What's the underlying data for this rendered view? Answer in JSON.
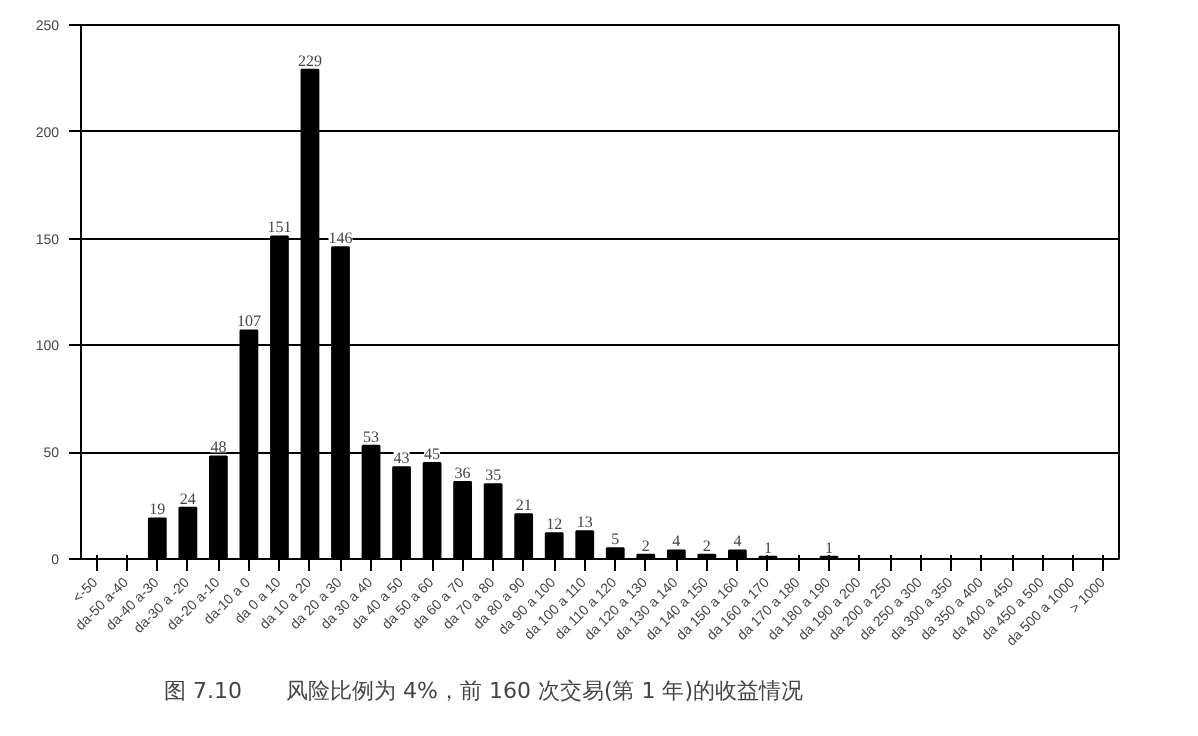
{
  "chart_data": {
    "type": "bar",
    "categories": [
      "<-50",
      "da-50 a-40",
      "da-40 a-30",
      "da-30 a -20",
      "da-20 a-10",
      "da-10 a 0",
      "da 0 a 10",
      "da 10 a 20",
      "da 20 a 30",
      "da 30 a 40",
      "da 40 a 50",
      "da 50 a 60",
      "da 60 a 70",
      "da 70 a 80",
      "da 80 a 90",
      "da 90 a 100",
      "da 100 a 110",
      "da 110 a 120",
      "da 120 a 130",
      "da 130 a 140",
      "da 140 a 150",
      "da 150 a 160",
      "da 160 a 170",
      "da 170 a 180",
      "da 180 a 190",
      "da 190 a 200",
      "da 200 a 250",
      "da 250 a 300",
      "da 300 a 350",
      "da 350 a 400",
      "da 400 a 450",
      "da 450 a 500",
      "da 500 a 1000",
      "> 1000"
    ],
    "values": [
      0,
      0,
      19,
      24,
      48,
      107,
      151,
      229,
      146,
      53,
      43,
      45,
      36,
      35,
      21,
      12,
      13,
      5,
      2,
      4,
      2,
      4,
      1,
      0,
      1,
      0,
      0,
      0,
      0,
      0,
      0,
      0,
      0,
      0
    ],
    "value_labels": [
      null,
      null,
      "19",
      "24",
      "48",
      "107",
      "151",
      "229",
      "146",
      "53",
      "43",
      "45",
      "36",
      "35",
      "21",
      "12",
      "13",
      "5",
      "2",
      "4",
      "2",
      "4",
      "1",
      null,
      "1",
      null,
      null,
      null,
      null,
      null,
      null,
      null,
      null,
      null
    ],
    "color": "#000000",
    "ylim": [
      0,
      250
    ],
    "yticks": [
      0,
      50,
      100,
      150,
      200,
      250
    ],
    "grid": "y",
    "annotations": [
      "图 7.10　　风险比例为 4%，前 160 次交易(第 1 年)的收益情况"
    ]
  }
}
